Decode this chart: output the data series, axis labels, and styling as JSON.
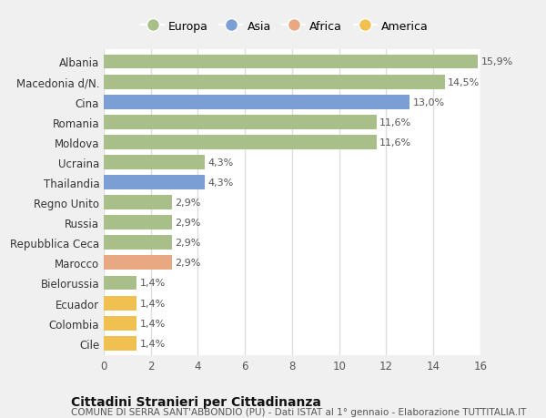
{
  "categories": [
    "Cile",
    "Colombia",
    "Ecuador",
    "Bielorussia",
    "Marocco",
    "Repubblica Ceca",
    "Russia",
    "Regno Unito",
    "Thailandia",
    "Ucraina",
    "Moldova",
    "Romania",
    "Cina",
    "Macedonia d/N.",
    "Albania"
  ],
  "values": [
    1.4,
    1.4,
    1.4,
    1.4,
    2.9,
    2.9,
    2.9,
    2.9,
    4.3,
    4.3,
    11.6,
    11.6,
    13.0,
    14.5,
    15.9
  ],
  "labels": [
    "1,4%",
    "1,4%",
    "1,4%",
    "1,4%",
    "2,9%",
    "2,9%",
    "2,9%",
    "2,9%",
    "4,3%",
    "4,3%",
    "11,6%",
    "11,6%",
    "13,0%",
    "14,5%",
    "15,9%"
  ],
  "colors": [
    "#f0c050",
    "#f0c050",
    "#f0c050",
    "#a8bf8a",
    "#e8a882",
    "#a8bf8a",
    "#a8bf8a",
    "#a8bf8a",
    "#7b9fd4",
    "#a8bf8a",
    "#a8bf8a",
    "#a8bf8a",
    "#7b9fd4",
    "#a8bf8a",
    "#a8bf8a"
  ],
  "legend_labels": [
    "Europa",
    "Asia",
    "Africa",
    "America"
  ],
  "legend_colors": [
    "#a8bf8a",
    "#7b9fd4",
    "#e8a882",
    "#f0c050"
  ],
  "title": "Cittadini Stranieri per Cittadinanza",
  "subtitle": "COMUNE DI SERRA SANT'ABBONDIO (PU) - Dati ISTAT al 1° gennaio - Elaborazione TUTTITALIA.IT",
  "xlim": [
    0,
    16
  ],
  "xticks": [
    0,
    2,
    4,
    6,
    8,
    10,
    12,
    14,
    16
  ],
  "fig_bg_color": "#f0f0f0",
  "plot_bg_color": "#ffffff",
  "grid_color": "#dddddd",
  "label_fontsize": 8,
  "ytick_fontsize": 8.5,
  "xtick_fontsize": 8.5,
  "title_fontsize": 10,
  "subtitle_fontsize": 7.5
}
